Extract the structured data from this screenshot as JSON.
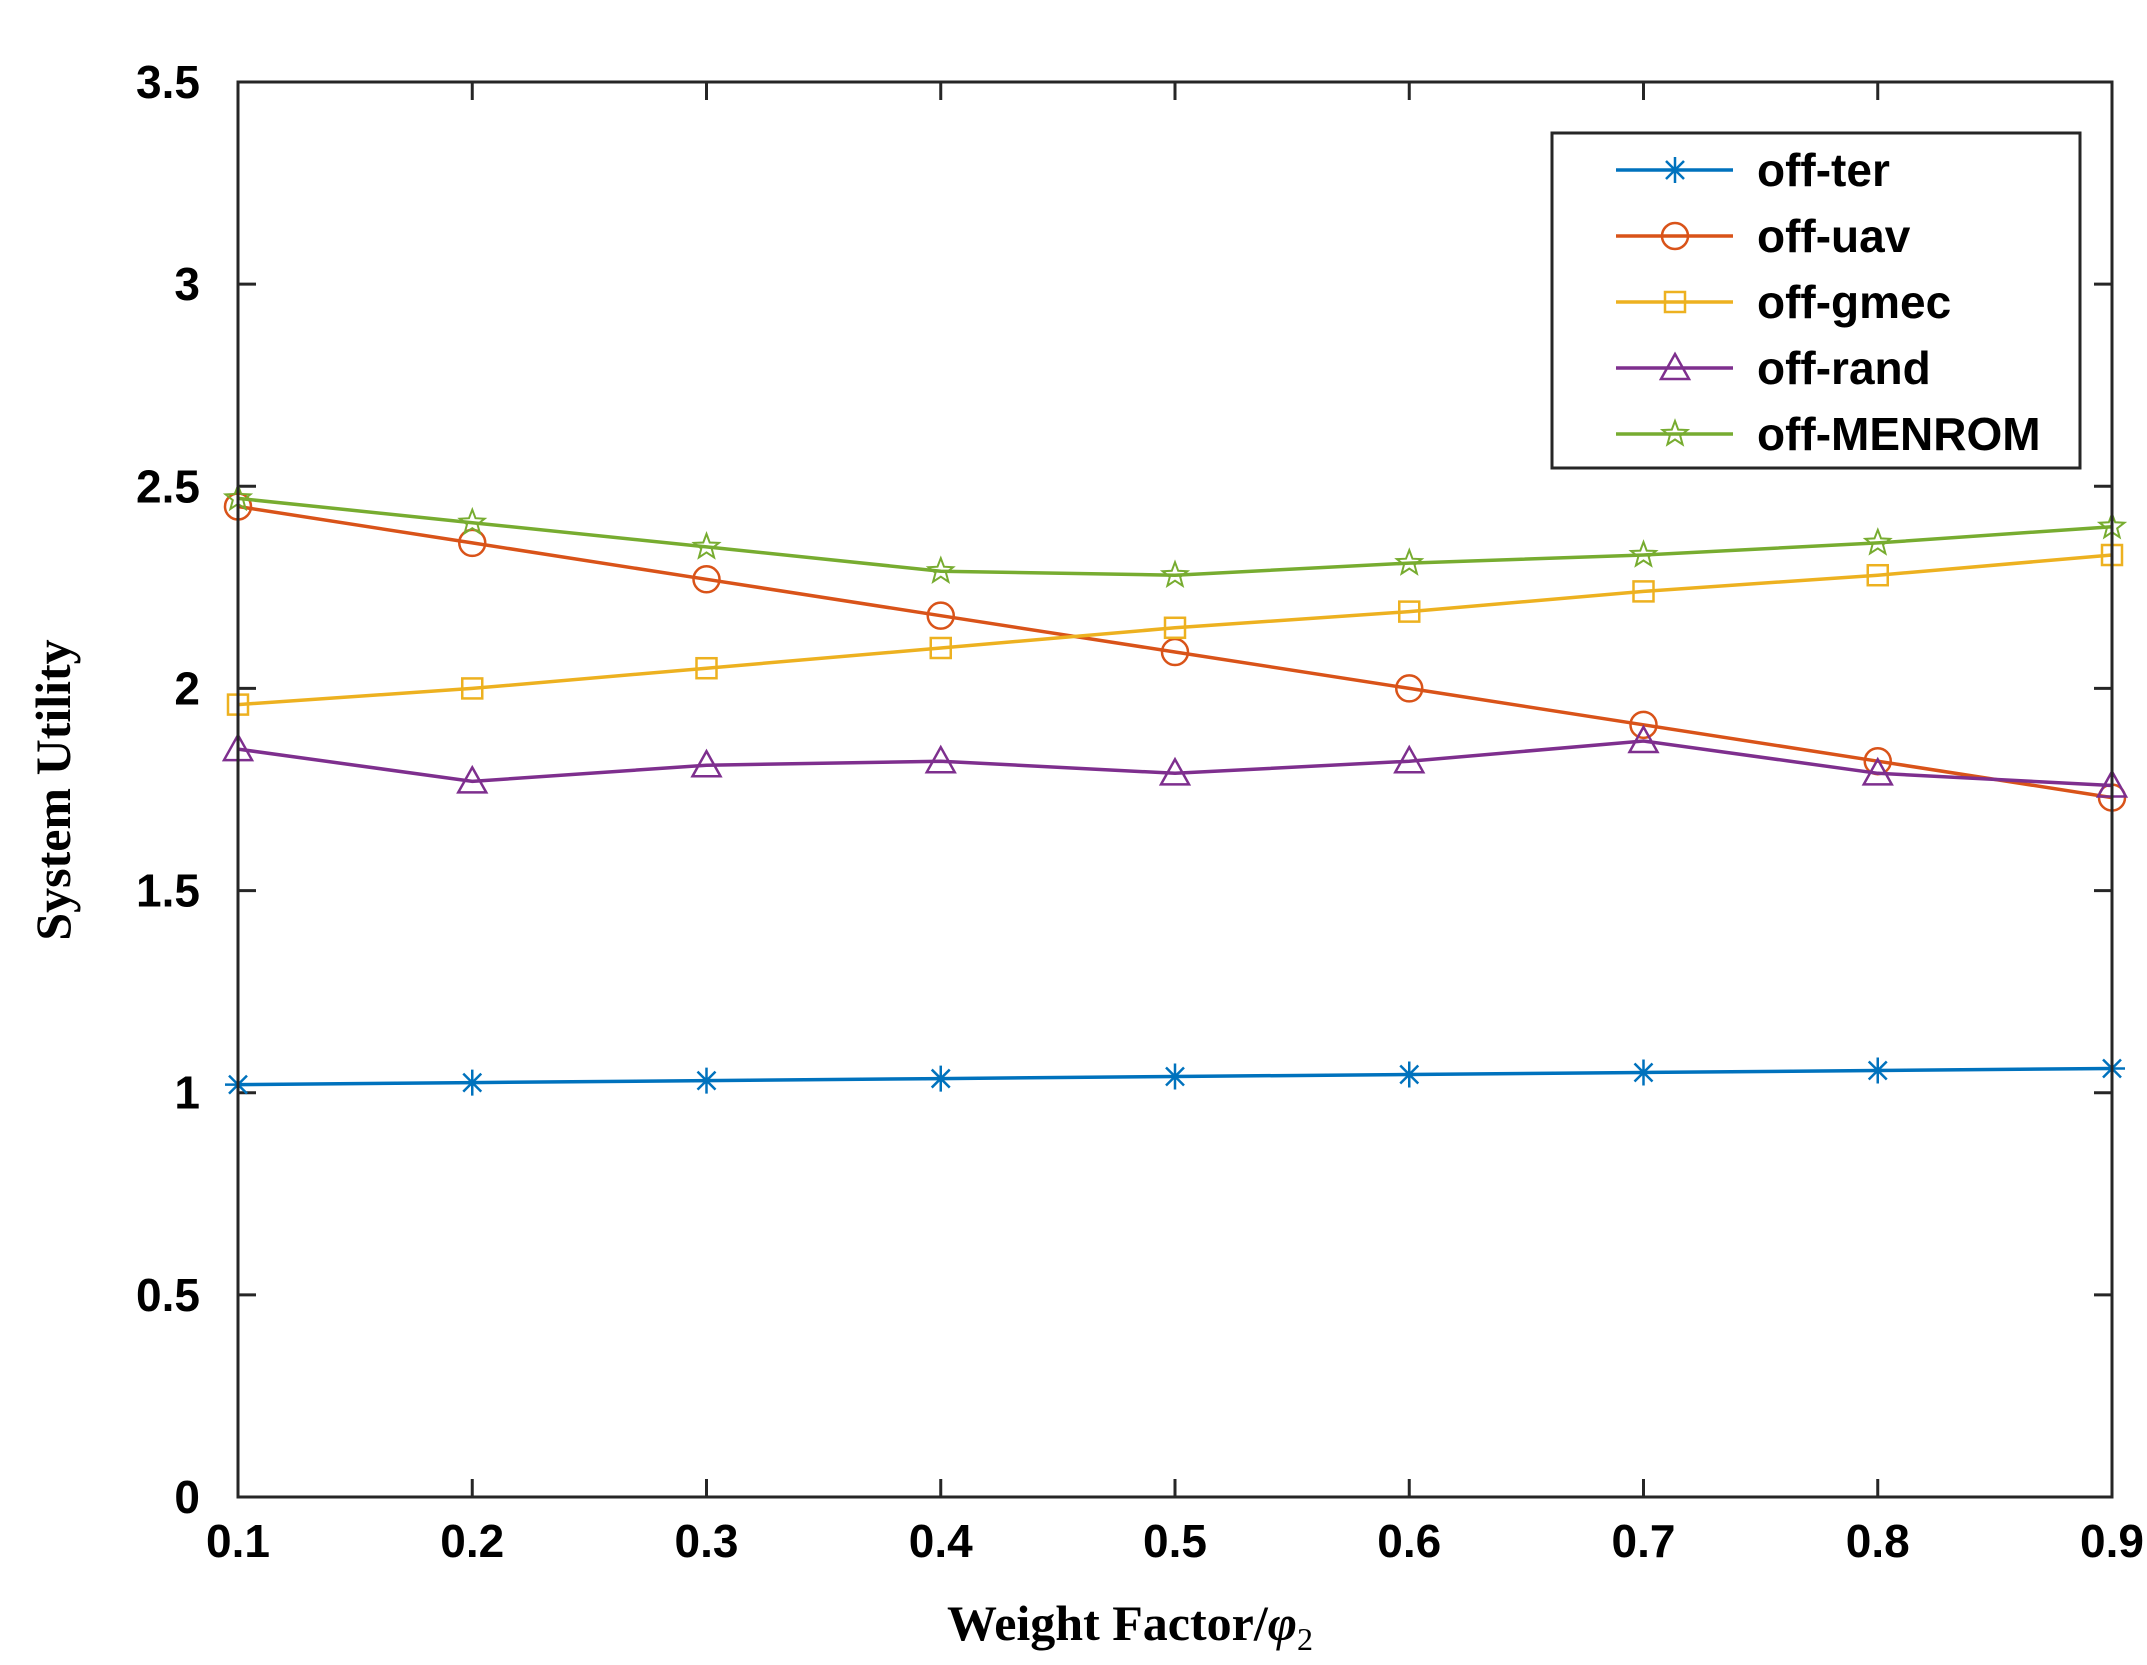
{
  "chart_data": {
    "type": "line",
    "title": "",
    "xlabel": "Weight Factor/",
    "xlabel_symbol": "φ",
    "xlabel_subscript": "2",
    "ylabel": "System Utility",
    "xlim": [
      0.1,
      0.9
    ],
    "ylim": [
      0,
      3.5
    ],
    "x": [
      0.1,
      0.2,
      0.3,
      0.4,
      0.5,
      0.6,
      0.7,
      0.8,
      0.9
    ],
    "xticks": [
      0.1,
      0.2,
      0.3,
      0.4,
      0.5,
      0.6,
      0.7,
      0.8,
      0.9
    ],
    "xtick_labels": [
      "0.1",
      "0.2",
      "0.3",
      "0.4",
      "0.5",
      "0.6",
      "0.7",
      "0.8",
      "0.9"
    ],
    "yticks": [
      0,
      0.5,
      1,
      1.5,
      2,
      2.5,
      3,
      3.5
    ],
    "ytick_labels": [
      "0",
      "0.5",
      "1",
      "1.5",
      "2",
      "2.5",
      "3",
      "3.5"
    ],
    "grid": false,
    "legend_position": "top-right",
    "series": [
      {
        "name": "off-ter",
        "marker": "asterisk",
        "color": "#0072BD",
        "values": [
          1.02,
          1.025,
          1.03,
          1.035,
          1.04,
          1.045,
          1.05,
          1.055,
          1.06
        ]
      },
      {
        "name": "off-uav",
        "marker": "circle",
        "color": "#D95319",
        "values": [
          2.45,
          2.36,
          2.27,
          2.18,
          2.09,
          2.0,
          1.91,
          1.82,
          1.73
        ]
      },
      {
        "name": "off-gmec",
        "marker": "square",
        "color": "#EDB120",
        "values": [
          1.96,
          2.0,
          2.05,
          2.1,
          2.15,
          2.19,
          2.24,
          2.28,
          2.33
        ]
      },
      {
        "name": "off-rand",
        "marker": "triangle",
        "color": "#7E2F8E",
        "values": [
          1.85,
          1.77,
          1.81,
          1.82,
          1.79,
          1.82,
          1.87,
          1.79,
          1.76
        ]
      },
      {
        "name": "off-MENROM",
        "marker": "star",
        "color": "#77AC30",
        "values": [
          2.47,
          2.41,
          2.35,
          2.29,
          2.28,
          2.31,
          2.33,
          2.36,
          2.4
        ]
      }
    ]
  }
}
